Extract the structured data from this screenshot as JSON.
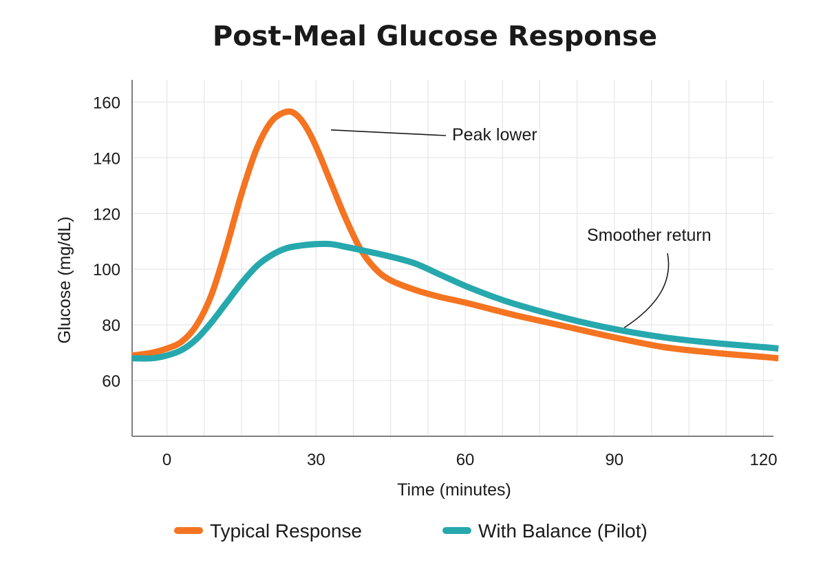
{
  "chart_data": {
    "type": "line",
    "title": "Post-Meal Glucose Response",
    "xlabel": "Time (minutes)",
    "ylabel": "Glucose (mg/dL)",
    "xlim": [
      -7,
      122
    ],
    "ylim": [
      40,
      168
    ],
    "x_ticks": [
      0,
      30,
      60,
      90,
      120
    ],
    "y_ticks": [
      60,
      80,
      100,
      120,
      140,
      160
    ],
    "grid": true,
    "legend_position": "bottom",
    "series": [
      {
        "name": "Typical Response",
        "color": "#f47421",
        "x": [
          -7,
          -3,
          0,
          3,
          6,
          9,
          12,
          15,
          18,
          21,
          24,
          26,
          28,
          30,
          33,
          36,
          39,
          42,
          45,
          50,
          55,
          60,
          70,
          80,
          90,
          100,
          110,
          120,
          123
        ],
        "y": [
          69,
          70,
          71.5,
          74,
          80,
          91,
          108,
          127,
          143,
          153,
          156.5,
          155.5,
          151,
          144,
          131,
          118,
          107,
          100,
          96,
          92.5,
          90,
          88,
          83.5,
          79.5,
          75.5,
          72,
          70,
          68.5,
          68
        ]
      },
      {
        "name": "With Balance (Pilot)",
        "color": "#26a8ad",
        "x": [
          -7,
          -3,
          0,
          3,
          6,
          9,
          12,
          15,
          18,
          21,
          24,
          27,
          30,
          33,
          36,
          40,
          45,
          50,
          55,
          60,
          65,
          70,
          80,
          90,
          100,
          110,
          120,
          123
        ],
        "y": [
          68,
          68,
          69,
          71,
          75,
          81,
          88,
          95,
          101,
          105,
          107.5,
          108.5,
          109,
          109,
          108,
          106.5,
          104.5,
          102,
          98,
          94,
          90.5,
          87.5,
          82.5,
          78.5,
          75.5,
          73.5,
          72,
          71.5
        ]
      }
    ],
    "annotations": [
      {
        "text": "Peak lower",
        "target_x": 33,
        "target_y": 150
      },
      {
        "text": "Smoother return",
        "target_x": 92,
        "target_y": 79
      }
    ]
  }
}
